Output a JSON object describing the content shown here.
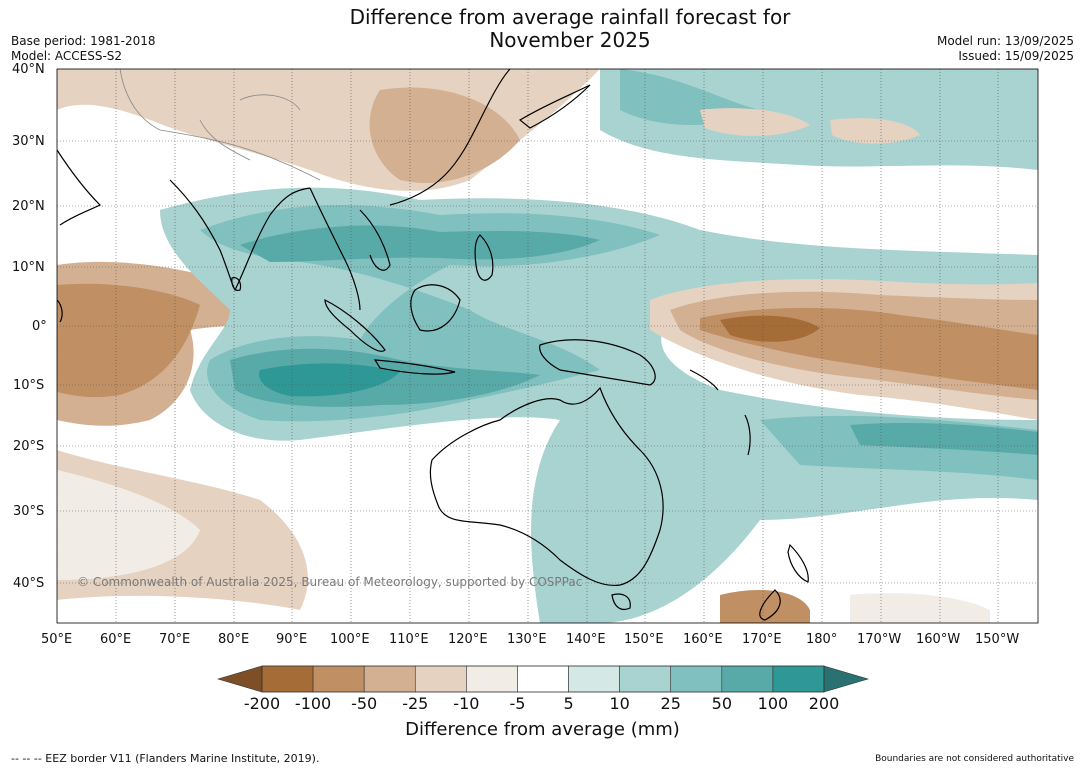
{
  "header": {
    "title_line1": "Difference from average rainfall forecast for",
    "title_line2": "November 2025",
    "base_period": "Base period: 1981-2018",
    "model": "Model: ACCESS-S2",
    "model_run": "Model run: 13/09/2025",
    "issued": "Issued: 15/09/2025"
  },
  "map": {
    "copyright": "© Commonwealth of Australia 2025, Bureau of Meteorology, supported by COSPPac",
    "lat_labels": [
      "40°N",
      "30°N",
      "20°N",
      "10°N",
      "0°",
      "10°S",
      "20°S",
      "30°S",
      "40°S"
    ],
    "lon_labels": [
      "50°E",
      "60°E",
      "70°E",
      "80°E",
      "90°E",
      "100°E",
      "110°E",
      "120°E",
      "130°E",
      "140°E",
      "150°E",
      "160°E",
      "170°E",
      "180°",
      "170°W",
      "160°W",
      "150°W"
    ]
  },
  "colorbar": {
    "title": "Difference from average (mm)",
    "ticks": [
      "-200",
      "-100",
      "-50",
      "-25",
      "-10",
      "-5",
      "5",
      "10",
      "25",
      "50",
      "100",
      "200"
    ],
    "colors": [
      "#a66c37",
      "#c08f63",
      "#d4b092",
      "#e6d2c0",
      "#f2ece6",
      "#ffffff",
      "#d4e8e6",
      "#a9d3d1",
      "#80c0be",
      "#58aaa8",
      "#2e9896"
    ],
    "end_low": "#7e4f27",
    "end_high": "#2a7271"
  },
  "footer": {
    "eez": "--  --  -- EEZ border V11 (Flanders Marine Institute, 2019).",
    "boundaries": "Boundaries are not considered authoritative"
  }
}
